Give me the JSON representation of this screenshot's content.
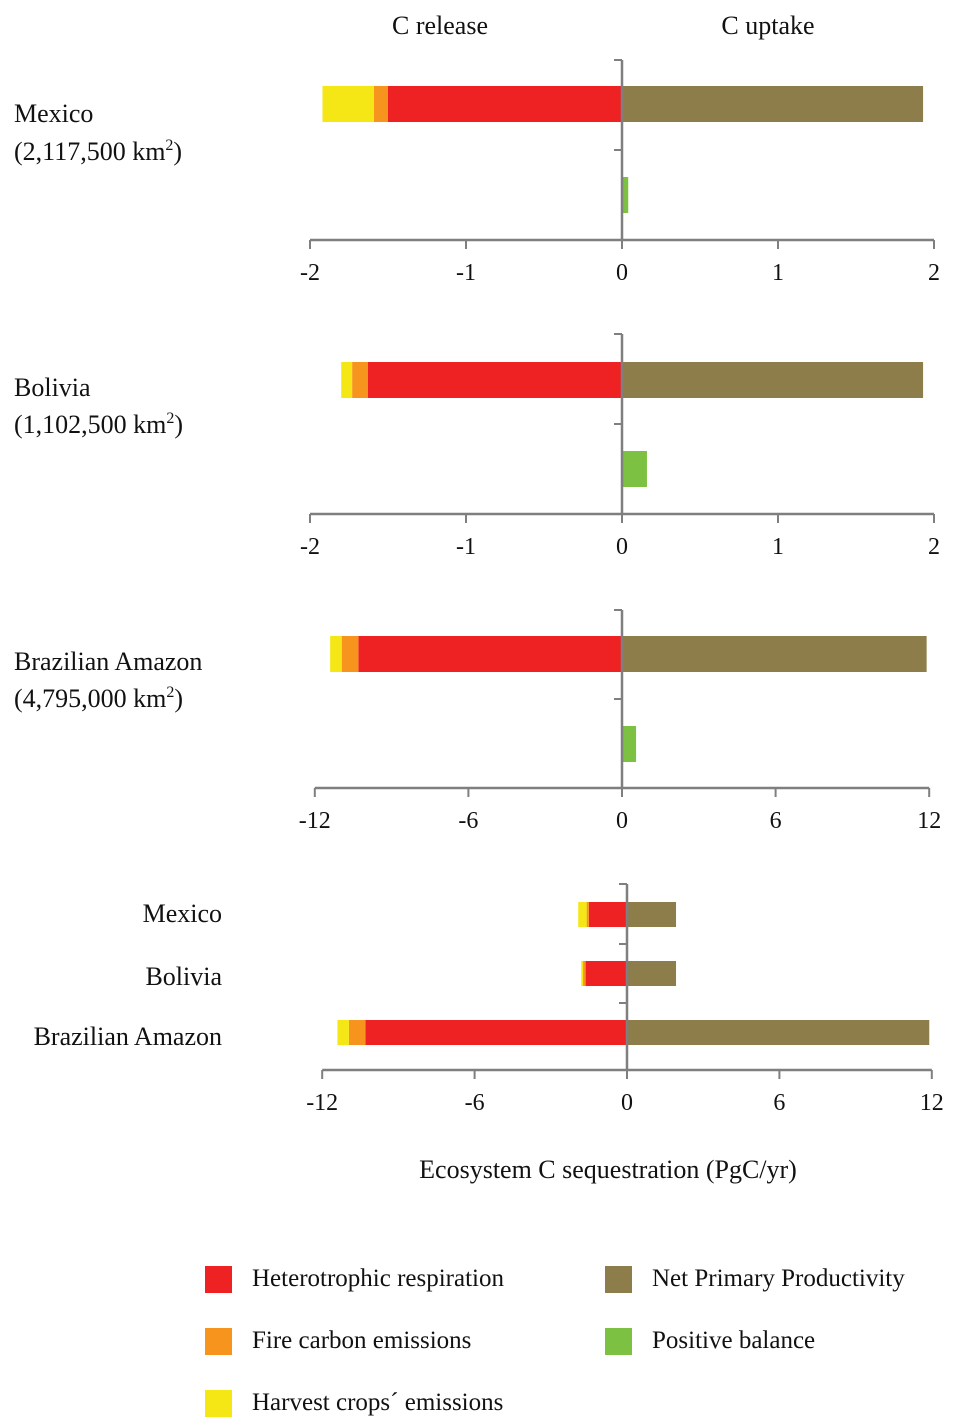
{
  "header": {
    "left": "C release",
    "right": "C uptake"
  },
  "colors": {
    "heterotrophic": "#ee2222",
    "fire": "#f7941d",
    "harvest": "#f5e616",
    "npp": "#8c7d4b",
    "positive": "#7dc142",
    "axis": "#7f7f7f"
  },
  "chart_data": [
    {
      "type": "bar",
      "orientation": "horizontal",
      "stacked": true,
      "panel_label": "Mexico",
      "panel_area": "(2,117,500 km",
      "panel_area_sup": "2",
      "panel_area_end": ")",
      "xlim": [
        -2,
        2
      ],
      "xticks": [
        "-2",
        "-1",
        "0",
        "1",
        "2"
      ],
      "release": {
        "heterotrophic": -1.5,
        "fire": -0.09,
        "harvest": -0.33
      },
      "uptake": {
        "npp": 1.93
      },
      "positive_balance": 0.04
    },
    {
      "type": "bar",
      "orientation": "horizontal",
      "stacked": true,
      "panel_label": "Bolivia",
      "panel_area": "(1,102,500 km",
      "panel_area_sup": "2",
      "panel_area_end": ")",
      "xlim": [
        -2,
        2
      ],
      "xticks": [
        "-2",
        "-1",
        "0",
        "1",
        "2"
      ],
      "release": {
        "heterotrophic": -1.63,
        "fire": -0.1,
        "harvest": -0.07
      },
      "uptake": {
        "npp": 1.93
      },
      "positive_balance": 0.16
    },
    {
      "type": "bar",
      "orientation": "horizontal",
      "stacked": true,
      "panel_label": "Brazilian  Amazon",
      "panel_area": "(4,795,000 km",
      "panel_area_sup": "2",
      "panel_area_end": ")",
      "xlim": [
        -12,
        12
      ],
      "xticks": [
        "-12",
        "-6",
        "0",
        "6",
        "12"
      ],
      "release": {
        "heterotrophic": -10.3,
        "fire": -0.65,
        "harvest": -0.45
      },
      "uptake": {
        "npp": 11.9
      },
      "positive_balance": 0.55
    },
    {
      "type": "bar",
      "orientation": "horizontal",
      "stacked": true,
      "categories": [
        "Mexico",
        "Bolivia",
        "Brazilian  Amazon"
      ],
      "xlim": [
        -12,
        12
      ],
      "xticks": [
        "-12",
        "-6",
        "0",
        "6",
        "12"
      ],
      "xlabel": "Ecosystem  C sequestration  (PgC/yr)",
      "series": [
        {
          "name": "Heterotrophic  respiration",
          "values": [
            -1.5,
            -1.63,
            -10.3
          ]
        },
        {
          "name": "Fire carbon emissions",
          "values": [
            -0.09,
            -0.1,
            -0.65
          ]
        },
        {
          "name": "Harvest  crops´  emissions",
          "values": [
            -0.33,
            -0.07,
            -0.45
          ]
        },
        {
          "name": "Net Primary  Productivity",
          "values": [
            1.93,
            1.93,
            11.9
          ]
        }
      ]
    }
  ],
  "legend": [
    {
      "label": "Heterotrophic  respiration",
      "color_key": "heterotrophic"
    },
    {
      "label": "Net Primary  Productivity",
      "color_key": "npp"
    },
    {
      "label": "Fire carbon emissions",
      "color_key": "fire"
    },
    {
      "label": "Positive  balance",
      "color_key": "positive"
    },
    {
      "label": "Harvest  crops´  emissions",
      "color_key": "harvest"
    }
  ]
}
